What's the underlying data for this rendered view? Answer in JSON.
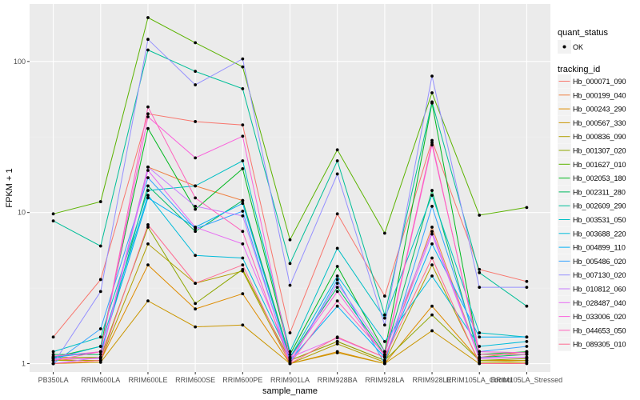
{
  "chart_data": {
    "type": "line",
    "xlabel": "sample_name",
    "ylabel": "FPKM + 1",
    "yscale": "log10",
    "ylim": [
      0.88,
      240
    ],
    "yticks": [
      1,
      10,
      100
    ],
    "ytick_labels": [
      "1",
      "10",
      "100"
    ],
    "grid": true,
    "legend_position": "right",
    "categories": [
      "PB350LA",
      "RRIM600LA",
      "RRIM600LE",
      "RRIM600SE",
      "RRIM600PE",
      "RRIM901LA",
      "RRIM928BA",
      "RRIM928LA",
      "RRIM928LE",
      "RRIM105LA_Control",
      "RRIM105LA_Stressed"
    ],
    "legends": [
      {
        "title": "quant_status",
        "items": [
          {
            "label": "OK",
            "marker": "point"
          }
        ]
      },
      {
        "title": "tracking_id",
        "items": []
      }
    ],
    "series": [
      {
        "name": "Hb_000071_090",
        "color": "#F8766D",
        "values": [
          1.5,
          3.6,
          45,
          40,
          38,
          1.6,
          9.8,
          2.8,
          30,
          4.2,
          3.5
        ]
      },
      {
        "name": "Hb_000199_040",
        "color": "#EE8042",
        "values": [
          1.05,
          1.1,
          20,
          15,
          12,
          1.05,
          1.4,
          1.05,
          8,
          1.1,
          1.2
        ]
      },
      {
        "name": "Hb_000243_290",
        "color": "#DE8C00",
        "values": [
          1.0,
          1.05,
          4.5,
          2.3,
          2.9,
          1.0,
          1.2,
          1.0,
          2.4,
          1.05,
          1.05
        ]
      },
      {
        "name": "Hb_000567_330",
        "color": "#CA9600",
        "values": [
          1.0,
          1.02,
          2.6,
          1.75,
          1.8,
          1.0,
          1.18,
          1.0,
          1.65,
          1.0,
          1.02
        ]
      },
      {
        "name": "Hb_000836_090",
        "color": "#B09F00",
        "values": [
          1.05,
          1.05,
          6.2,
          3.4,
          4.1,
          1.0,
          1.35,
          1.02,
          4.5,
          1.02,
          1.05
        ]
      },
      {
        "name": "Hb_001307_020",
        "color": "#8EA700",
        "values": [
          1.1,
          1.1,
          8,
          2.5,
          4.2,
          1.05,
          1.4,
          1.05,
          2.1,
          1.05,
          1.08
        ]
      },
      {
        "name": "Hb_001627_010",
        "color": "#5BB300",
        "values": [
          9.8,
          11.8,
          195,
          133,
          92,
          6.6,
          26,
          7.3,
          62,
          9.6,
          10.8
        ]
      },
      {
        "name": "Hb_002053_180",
        "color": "#00B81F",
        "values": [
          1.1,
          1.3,
          36,
          10.5,
          19.5,
          1.15,
          4.4,
          1.2,
          53,
          1.15,
          1.2
        ]
      },
      {
        "name": "Hb_002311_280",
        "color": "#00BA60",
        "values": [
          1.15,
          1.15,
          15,
          7.5,
          12,
          1.1,
          3.2,
          1.15,
          14,
          1.1,
          1.15
        ]
      },
      {
        "name": "Hb_002609_290",
        "color": "#00BE98",
        "values": [
          8.8,
          6.0,
          119,
          86,
          66,
          4.6,
          22,
          2.1,
          54,
          4.0,
          2.4
        ]
      },
      {
        "name": "Hb_003531_050",
        "color": "#00BFC4",
        "values": [
          1.2,
          1.5,
          14,
          15,
          22,
          1.2,
          5.8,
          2.0,
          13,
          1.6,
          1.5
        ]
      },
      {
        "name": "Hb_003688_220",
        "color": "#00BBDA",
        "values": [
          1.08,
          1.3,
          13,
          5.2,
          5.0,
          1.1,
          3.8,
          1.4,
          3.8,
          1.3,
          1.4
        ]
      },
      {
        "name": "Hb_004899_110",
        "color": "#00B0F6",
        "values": [
          1.1,
          1.2,
          12.5,
          8.0,
          11.5,
          1.05,
          2.4,
          1.1,
          6.2,
          1.5,
          1.5
        ]
      },
      {
        "name": "Hb_005486_020",
        "color": "#35A2FF",
        "values": [
          1.0,
          1.7,
          17,
          7.8,
          10.2,
          1.0,
          3.6,
          1.0,
          11,
          1.2,
          1.3
        ]
      },
      {
        "name": "Hb_007130_020",
        "color": "#9590FF",
        "values": [
          1.0,
          3.0,
          140,
          70,
          104,
          3.3,
          18,
          1.8,
          80,
          3.2,
          3.2
        ]
      },
      {
        "name": "Hb_010812_060",
        "color": "#C77CFF",
        "values": [
          1.0,
          1.1,
          20,
          11,
          9.5,
          1.02,
          3.4,
          1.2,
          7.5,
          1.1,
          1.1
        ]
      },
      {
        "name": "Hb_028487_040",
        "color": "#E76BF3",
        "values": [
          1.08,
          1.08,
          19,
          8,
          6.2,
          1.1,
          1.48,
          1.1,
          7.2,
          1.08,
          1.1
        ]
      },
      {
        "name": "Hb_033006_020",
        "color": "#FA62DB",
        "values": [
          1.12,
          1.2,
          43,
          23,
          32,
          1.08,
          3.0,
          1.12,
          28,
          1.2,
          1.18
        ]
      },
      {
        "name": "Hb_044653_050",
        "color": "#FF62BC",
        "values": [
          1.05,
          1.2,
          50,
          12.5,
          7.5,
          1.0,
          2.6,
          1.15,
          29,
          1.15,
          1.15
        ]
      },
      {
        "name": "Hb_089305_010",
        "color": "#FF6C91",
        "values": [
          1.0,
          1.05,
          8.3,
          3.4,
          4.5,
          1.0,
          1.5,
          1.1,
          5.0,
          1.0,
          1.0
        ]
      }
    ]
  }
}
